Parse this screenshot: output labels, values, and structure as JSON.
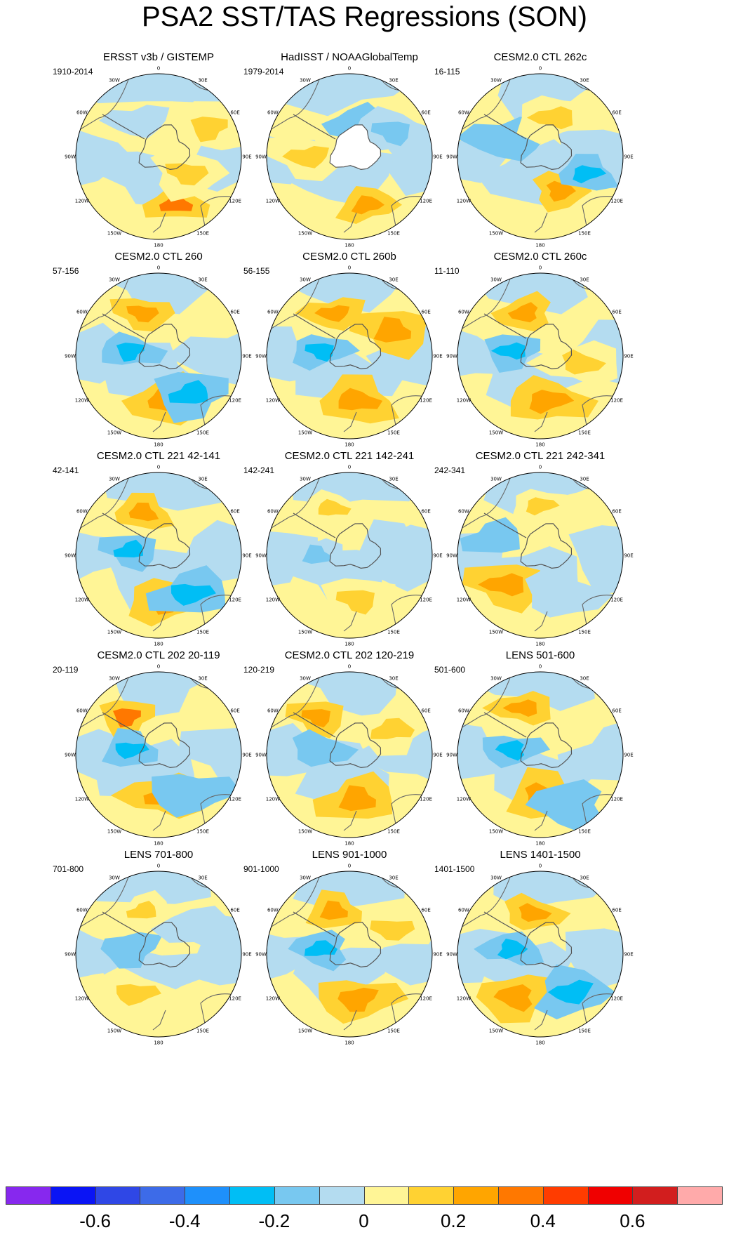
{
  "title": "PSA2 SST/TAS Regressions (SON)",
  "longitude_labels": [
    "0",
    "30E",
    "60E",
    "90E",
    "120E",
    "150E",
    "180",
    "150W",
    "120W",
    "90W",
    "60W",
    "30W"
  ],
  "panels": [
    {
      "title": "ERSST v3b / GISTEMP",
      "years": "1910-2014",
      "landmask": false,
      "anomalies": [
        {
          "lon": 160,
          "r": 0.62,
          "v": 0.3
        },
        {
          "lon": 120,
          "r": 0.4,
          "v": 0.15
        },
        {
          "lon": -30,
          "r": 0.5,
          "v": -0.05
        },
        {
          "lon": 60,
          "r": 0.7,
          "v": 0.15
        }
      ]
    },
    {
      "title": "HadISST / NOAAGlobalTemp",
      "years": "1979-2014",
      "landmask": true,
      "anomalies": [
        {
          "lon": 160,
          "r": 0.62,
          "v": 0.2
        },
        {
          "lon": -90,
          "r": 0.5,
          "v": 0.15
        },
        {
          "lon": 10,
          "r": 0.4,
          "v": -0.2
        },
        {
          "lon": 60,
          "r": 0.6,
          "v": -0.15
        }
      ]
    },
    {
      "title": "CESM2.0 CTL 262c",
      "years": "16-115",
      "landmask": false,
      "anomalies": [
        {
          "lon": 150,
          "r": 0.48,
          "v": 0.2
        },
        {
          "lon": -60,
          "r": 0.45,
          "v": -0.2
        },
        {
          "lon": 110,
          "r": 0.6,
          "v": -0.25
        },
        {
          "lon": 20,
          "r": 0.5,
          "v": 0.1
        }
      ]
    },
    {
      "title": "CESM2.0 CTL 260",
      "years": "57-156",
      "landmask": false,
      "anomalies": [
        {
          "lon": -20,
          "r": 0.55,
          "v": 0.2
        },
        {
          "lon": 170,
          "r": 0.55,
          "v": 0.25
        },
        {
          "lon": -80,
          "r": 0.35,
          "v": -0.25
        },
        {
          "lon": 140,
          "r": 0.6,
          "v": -0.3
        }
      ]
    },
    {
      "title": "CESM2.0 CTL 260b",
      "years": "56-155",
      "landmask": false,
      "anomalies": [
        {
          "lon": -20,
          "r": 0.55,
          "v": 0.25
        },
        {
          "lon": 170,
          "r": 0.55,
          "v": 0.2
        },
        {
          "lon": -80,
          "r": 0.35,
          "v": -0.25
        },
        {
          "lon": 60,
          "r": 0.6,
          "v": 0.2
        }
      ]
    },
    {
      "title": "CESM2.0 CTL 260c",
      "years": "11-110",
      "landmask": false,
      "anomalies": [
        {
          "lon": -20,
          "r": 0.55,
          "v": 0.25
        },
        {
          "lon": 170,
          "r": 0.55,
          "v": 0.25
        },
        {
          "lon": -80,
          "r": 0.35,
          "v": -0.25
        },
        {
          "lon": 100,
          "r": 0.5,
          "v": 0.1
        }
      ]
    },
    {
      "title": "CESM2.0 CTL 221 42-141",
      "years": "42-141",
      "landmask": false,
      "anomalies": [
        {
          "lon": -20,
          "r": 0.55,
          "v": 0.2
        },
        {
          "lon": 170,
          "r": 0.55,
          "v": 0.25
        },
        {
          "lon": -80,
          "r": 0.35,
          "v": -0.25
        },
        {
          "lon": 140,
          "r": 0.6,
          "v": -0.25
        }
      ]
    },
    {
      "title": "CESM2.0 CTL 221 142-241",
      "years": "142-241",
      "landmask": false,
      "anomalies": [
        {
          "lon": -20,
          "r": 0.6,
          "v": 0.15
        },
        {
          "lon": 170,
          "r": 0.55,
          "v": 0.1
        },
        {
          "lon": -90,
          "r": 0.4,
          "v": -0.15
        },
        {
          "lon": 80,
          "r": 0.5,
          "v": -0.05
        }
      ]
    },
    {
      "title": "CESM2.0 CTL 221 242-341",
      "years": "242-341",
      "landmask": false,
      "anomalies": [
        {
          "lon": 0,
          "r": 0.6,
          "v": 0.15
        },
        {
          "lon": -130,
          "r": 0.55,
          "v": 0.2
        },
        {
          "lon": -70,
          "r": 0.6,
          "v": -0.2
        },
        {
          "lon": 150,
          "r": 0.55,
          "v": -0.1
        }
      ]
    },
    {
      "title": "CESM2.0 CTL 202 20-119",
      "years": "20-119",
      "landmask": false,
      "anomalies": [
        {
          "lon": -40,
          "r": 0.6,
          "v": 0.3
        },
        {
          "lon": 170,
          "r": 0.5,
          "v": 0.2
        },
        {
          "lon": -80,
          "r": 0.35,
          "v": -0.25
        },
        {
          "lon": 140,
          "r": 0.6,
          "v": -0.2
        }
      ]
    },
    {
      "title": "CESM2.0 CTL 202 120-219",
      "years": "120-219",
      "landmask": false,
      "anomalies": [
        {
          "lon": -40,
          "r": 0.6,
          "v": 0.2
        },
        {
          "lon": 170,
          "r": 0.55,
          "v": 0.2
        },
        {
          "lon": -80,
          "r": 0.35,
          "v": -0.2
        },
        {
          "lon": 60,
          "r": 0.6,
          "v": 0.1
        }
      ]
    },
    {
      "title": "LENS 501-600",
      "years": "501-600",
      "landmask": false,
      "anomalies": [
        {
          "lon": -20,
          "r": 0.6,
          "v": 0.2
        },
        {
          "lon": 175,
          "r": 0.5,
          "v": 0.2
        },
        {
          "lon": -80,
          "r": 0.35,
          "v": -0.25
        },
        {
          "lon": 150,
          "r": 0.7,
          "v": -0.2
        }
      ]
    },
    {
      "title": "LENS 701-800",
      "years": "701-800",
      "landmask": false,
      "anomalies": [
        {
          "lon": -20,
          "r": 0.55,
          "v": 0.15
        },
        {
          "lon": -150,
          "r": 0.55,
          "v": 0.15
        },
        {
          "lon": -80,
          "r": 0.35,
          "v": -0.2
        },
        {
          "lon": 60,
          "r": 0.6,
          "v": -0.1
        }
      ]
    },
    {
      "title": "LENS 901-1000",
      "years": "901-1000",
      "landmask": false,
      "anomalies": [
        {
          "lon": -20,
          "r": 0.55,
          "v": 0.25
        },
        {
          "lon": 170,
          "r": 0.55,
          "v": 0.2
        },
        {
          "lon": -80,
          "r": 0.35,
          "v": -0.25
        },
        {
          "lon": 60,
          "r": 0.6,
          "v": 0.15
        }
      ]
    },
    {
      "title": "LENS 1401-1500",
      "years": "1401-1500",
      "landmask": false,
      "anomalies": [
        {
          "lon": -10,
          "r": 0.5,
          "v": 0.25
        },
        {
          "lon": -150,
          "r": 0.6,
          "v": 0.2
        },
        {
          "lon": -80,
          "r": 0.35,
          "v": -0.3
        },
        {
          "lon": 140,
          "r": 0.6,
          "v": -0.3
        }
      ]
    }
  ],
  "colorbar": {
    "levels": [
      -0.7,
      -0.6,
      -0.5,
      -0.4,
      -0.3,
      -0.2,
      -0.1,
      0,
      0.1,
      0.2,
      0.3,
      0.4,
      0.5,
      0.6,
      0.7
    ],
    "colors": [
      "#8728ee",
      "#0a14f5",
      "#2f47e6",
      "#3d6be8",
      "#1e90fb",
      "#00bef5",
      "#78c8f0",
      "#b4dcf0",
      "#fff596",
      "#ffd232",
      "#ffa500",
      "#ff7800",
      "#ff3c00",
      "#f00000",
      "#d21e1e",
      "#ffaaaa"
    ],
    "labels": [
      "-0.6",
      "-0.4",
      "-0.2",
      "0",
      "0.2",
      "0.4",
      "0.6"
    ]
  }
}
